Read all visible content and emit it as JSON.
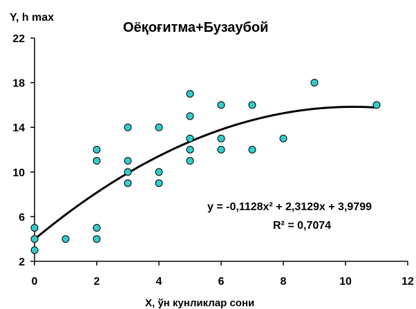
{
  "chart_data": {
    "type": "scatter",
    "title": "Оёқоғитма+Бузаубой",
    "xlabel": "X, ўн кунликлар сони",
    "ylabel": "Y, h max",
    "xlim": [
      0,
      12
    ],
    "ylim": [
      2,
      22
    ],
    "x_ticks": [
      0,
      2,
      4,
      6,
      8,
      10,
      12
    ],
    "y_ticks": [
      2,
      6,
      10,
      14,
      18,
      22
    ],
    "x_tick_labels": [
      "0",
      "2",
      "4",
      "6",
      "8",
      "10",
      "12"
    ],
    "y_tick_labels": [
      "2",
      "6",
      "10",
      "14",
      "18",
      "22"
    ],
    "grid": false,
    "legend": "none",
    "marker_color": "#33cccc",
    "marker_edge_color": "#000000",
    "points": [
      {
        "x": 0,
        "y": 5
      },
      {
        "x": 0,
        "y": 4
      },
      {
        "x": 0,
        "y": 3
      },
      {
        "x": 1,
        "y": 4
      },
      {
        "x": 2,
        "y": 12
      },
      {
        "x": 2,
        "y": 11
      },
      {
        "x": 2,
        "y": 5
      },
      {
        "x": 2,
        "y": 4
      },
      {
        "x": 3,
        "y": 14
      },
      {
        "x": 3,
        "y": 11
      },
      {
        "x": 3,
        "y": 10
      },
      {
        "x": 3,
        "y": 9
      },
      {
        "x": 4,
        "y": 14
      },
      {
        "x": 4,
        "y": 10
      },
      {
        "x": 4,
        "y": 9
      },
      {
        "x": 5,
        "y": 17
      },
      {
        "x": 5,
        "y": 15
      },
      {
        "x": 5,
        "y": 13
      },
      {
        "x": 5,
        "y": 12
      },
      {
        "x": 5,
        "y": 11
      },
      {
        "x": 6,
        "y": 16
      },
      {
        "x": 6,
        "y": 13
      },
      {
        "x": 6,
        "y": 12
      },
      {
        "x": 7,
        "y": 16
      },
      {
        "x": 7,
        "y": 12
      },
      {
        "x": 8,
        "y": 13
      },
      {
        "x": 9,
        "y": 18
      },
      {
        "x": 11,
        "y": 16
      }
    ],
    "trendline": {
      "type": "polynomial",
      "coefficients": [
        -0.1128,
        2.3129,
        3.9799
      ],
      "x_range": [
        0,
        11
      ],
      "equation_label": "y = -0,1128x² + 2,3129x + 3,9799",
      "r2_label": "R² = 0,7074"
    }
  }
}
